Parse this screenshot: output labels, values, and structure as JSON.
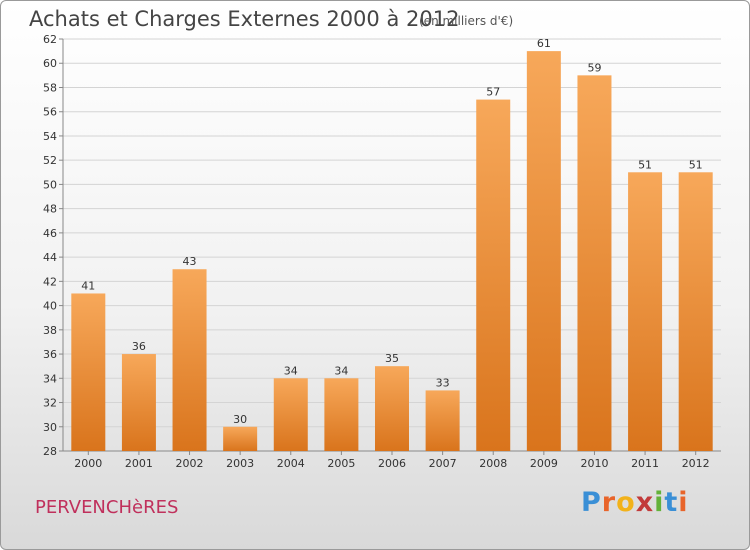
{
  "header": {
    "title": "Achats et Charges Externes 2000 à 2012",
    "subtitle": "(en milliers d'€)"
  },
  "footer": {
    "commune": "PERVENCHèRES",
    "brand": [
      "P",
      "r",
      "o",
      "x",
      "i",
      "t",
      "i"
    ]
  },
  "colors": {
    "bar_top": "#f7a85a",
    "bar_bottom": "#d9741c",
    "brand_letters": [
      "#3a8fd6",
      "#e8642a",
      "#f2b21a",
      "#c23a3a",
      "#63b23a",
      "#3a8fd6",
      "#e8642a"
    ]
  },
  "chart_data": {
    "type": "bar",
    "title": "Achats et Charges Externes 2000 à 2012",
    "subtitle": "(en milliers d'€)",
    "categories": [
      "2000",
      "2001",
      "2002",
      "2003",
      "2004",
      "2005",
      "2006",
      "2007",
      "2008",
      "2009",
      "2010",
      "2011",
      "2012"
    ],
    "values": [
      41,
      36,
      43,
      30,
      34,
      34,
      35,
      33,
      57,
      61,
      59,
      51,
      51
    ],
    "ylim": [
      28,
      62
    ],
    "yticks": [
      28,
      30,
      32,
      34,
      36,
      38,
      40,
      42,
      44,
      46,
      48,
      50,
      52,
      54,
      56,
      58,
      60,
      62
    ],
    "grid": true,
    "xlabel": "",
    "ylabel": ""
  }
}
